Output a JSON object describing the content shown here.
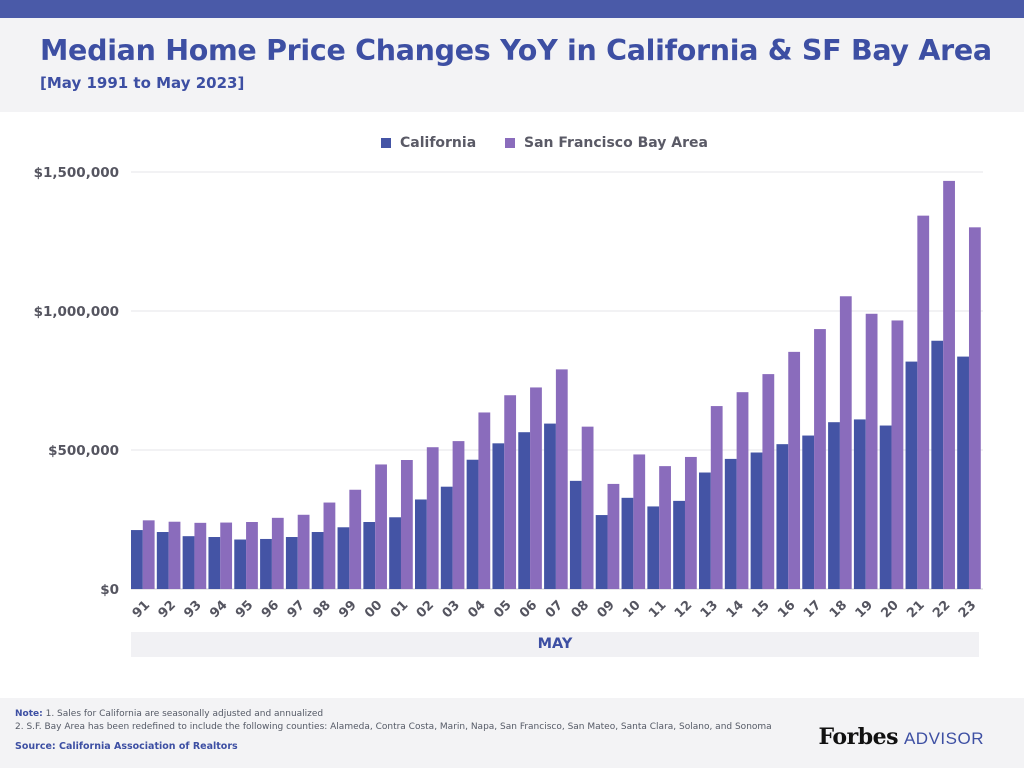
{
  "header": {
    "title": "Median Home Price Changes YoY in California & SF Bay Area",
    "subtitle": "[May 1991 to May 2023]"
  },
  "colors": {
    "california": "#4454a5",
    "bay_area": "#8a6cbc",
    "accent": "#3d4fa3",
    "grid": "#e4e4e8",
    "tick_text": "#555560"
  },
  "legend": {
    "california": "California",
    "bay_area": "San Francisco Bay Area"
  },
  "footer": {
    "note_label": "Note:",
    "note_1": "1. Sales for California are seasonally adjusted and annualized",
    "note_2": "2. S.F. Bay Area has been redefined to include the following counties: Alameda, Contra Costa, Marin, Napa, San Francisco, San Mateo, Santa Clara, Solano, and Sonoma",
    "source": "Source: California Association of Realtors",
    "brand_name": "Forbes",
    "brand_sub": "ADVISOR"
  },
  "chart_data": {
    "type": "bar",
    "title": "Median Home Price Changes YoY in California & SF Bay Area",
    "subtitle": "[May 1991 to May 2023]",
    "xlabel": "MAY",
    "ylabel": "",
    "categories": [
      "91",
      "92",
      "93",
      "94",
      "95",
      "96",
      "97",
      "98",
      "99",
      "00",
      "01",
      "02",
      "03",
      "04",
      "05",
      "06",
      "07",
      "08",
      "09",
      "10",
      "11",
      "12",
      "13",
      "14",
      "15",
      "16",
      "17",
      "18",
      "19",
      "20",
      "21",
      "22",
      "23"
    ],
    "series": [
      {
        "name": "California",
        "values": [
          212000,
          205000,
          190000,
          187000,
          178000,
          180000,
          187000,
          205000,
          222000,
          241000,
          258000,
          322000,
          368000,
          465000,
          524000,
          564000,
          595000,
          389000,
          266000,
          328000,
          297000,
          317000,
          419000,
          468000,
          491000,
          521000,
          552000,
          600000,
          610000,
          588000,
          818000,
          893000,
          836000
        ]
      },
      {
        "name": "San Francisco Bay Area",
        "values": [
          247000,
          242000,
          238000,
          239000,
          241000,
          256000,
          267000,
          311000,
          357000,
          448000,
          464000,
          510000,
          532000,
          635000,
          697000,
          725000,
          790000,
          584000,
          378000,
          484000,
          442000,
          475000,
          658000,
          708000,
          773000,
          853000,
          935000,
          1053000,
          990000,
          966000,
          1343000,
          1468000,
          1301000
        ]
      }
    ],
    "ylim": [
      0,
      1500000
    ],
    "yticks": [
      0,
      500000,
      1000000,
      1500000
    ],
    "ytick_labels": [
      "$0",
      "$500,000",
      "$1,000,000",
      "$1,500,000"
    ],
    "grid": true,
    "legend_position": "top-center"
  }
}
